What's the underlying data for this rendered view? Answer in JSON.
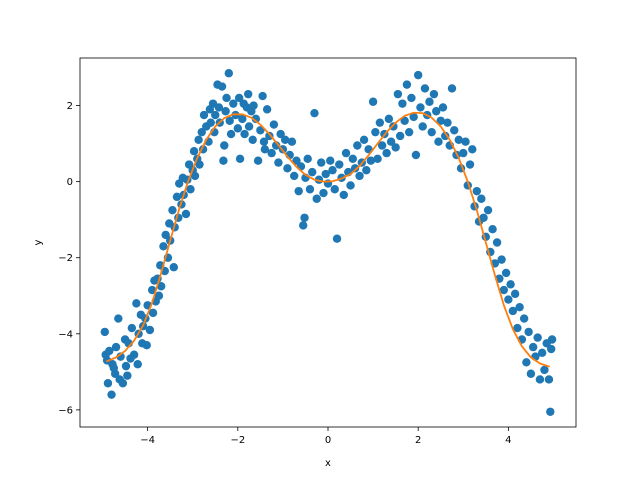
{
  "chart_data": {
    "type": "scatter",
    "xlabel": "x",
    "ylabel": "y",
    "xlim": [
      -5.5,
      5.5
    ],
    "ylim": [
      -6.45,
      3.25
    ],
    "xticks": [
      -4,
      -2,
      0,
      2,
      4
    ],
    "yticks": [
      -6,
      -4,
      -2,
      0,
      2
    ],
    "xtick_labels": [
      "−4",
      "−2",
      "0",
      "2",
      "4"
    ],
    "ytick_labels": [
      "−6",
      "−4",
      "−2",
      "0",
      "2"
    ],
    "grid": false,
    "series": [
      {
        "kind": "scatter",
        "color": "#1f77b4",
        "points": [
          [
            -4.95,
            -3.95
          ],
          [
            -4.93,
            -4.55
          ],
          [
            -4.9,
            -4.7
          ],
          [
            -4.88,
            -5.3
          ],
          [
            -4.85,
            -4.45
          ],
          [
            -4.8,
            -5.6
          ],
          [
            -4.78,
            -4.8
          ],
          [
            -4.75,
            -4.9
          ],
          [
            -4.72,
            -5.05
          ],
          [
            -4.7,
            -4.35
          ],
          [
            -4.65,
            -3.6
          ],
          [
            -4.62,
            -5.2
          ],
          [
            -4.6,
            -4.6
          ],
          [
            -4.55,
            -5.3
          ],
          [
            -4.5,
            -4.15
          ],
          [
            -4.48,
            -4.85
          ],
          [
            -4.45,
            -5.1
          ],
          [
            -4.42,
            -4.25
          ],
          [
            -4.38,
            -4.65
          ],
          [
            -4.35,
            -3.85
          ],
          [
            -4.3,
            -4.55
          ],
          [
            -4.25,
            -3.2
          ],
          [
            -4.22,
            -4.8
          ],
          [
            -4.2,
            -4.0
          ],
          [
            -4.15,
            -3.5
          ],
          [
            -4.12,
            -4.25
          ],
          [
            -4.1,
            -3.8
          ],
          [
            -4.05,
            -3.6
          ],
          [
            -4.02,
            -4.3
          ],
          [
            -4.0,
            -3.25
          ],
          [
            -3.95,
            -3.9
          ],
          [
            -3.9,
            -2.85
          ],
          [
            -3.88,
            -3.45
          ],
          [
            -3.85,
            -2.6
          ],
          [
            -3.82,
            -3.15
          ],
          [
            -3.78,
            -2.55
          ],
          [
            -3.75,
            -3.0
          ],
          [
            -3.72,
            -2.2
          ],
          [
            -3.7,
            -2.75
          ],
          [
            -3.65,
            -1.7
          ],
          [
            -3.62,
            -2.35
          ],
          [
            -3.6,
            -1.4
          ],
          [
            -3.55,
            -2.0
          ],
          [
            -3.52,
            -1.1
          ],
          [
            -3.5,
            -1.55
          ],
          [
            -3.45,
            -0.75
          ],
          [
            -3.42,
            -2.25
          ],
          [
            -3.4,
            -1.2
          ],
          [
            -3.35,
            -0.4
          ],
          [
            -3.32,
            -0.95
          ],
          [
            -3.3,
            -0.05
          ],
          [
            -3.25,
            -0.6
          ],
          [
            -3.22,
            0.1
          ],
          [
            -3.2,
            -0.35
          ],
          [
            -3.15,
            -0.85
          ],
          [
            -3.12,
            0.05
          ],
          [
            -3.08,
            0.45
          ],
          [
            -3.05,
            -0.2
          ],
          [
            -3.0,
            0.3
          ],
          [
            -2.97,
            0.8
          ],
          [
            -2.95,
            0.15
          ],
          [
            -2.9,
            0.6
          ],
          [
            -2.87,
            1.1
          ],
          [
            -2.85,
            0.45
          ],
          [
            -2.8,
            1.3
          ],
          [
            -2.77,
            0.85
          ],
          [
            -2.75,
            1.75
          ],
          [
            -2.7,
            1.45
          ],
          [
            -2.65,
            1.05
          ],
          [
            -2.62,
            1.9
          ],
          [
            -2.6,
            1.55
          ],
          [
            -2.55,
            2.05
          ],
          [
            -2.52,
            1.3
          ],
          [
            -2.5,
            1.75
          ],
          [
            -2.45,
            2.55
          ],
          [
            -2.42,
            1.95
          ],
          [
            -2.4,
            1.55
          ],
          [
            -2.35,
            2.5
          ],
          [
            -2.32,
            0.55
          ],
          [
            -2.3,
            0.95
          ],
          [
            -2.27,
            1.85
          ],
          [
            -2.25,
            2.2
          ],
          [
            -2.2,
            2.85
          ],
          [
            -2.18,
            1.6
          ],
          [
            -2.15,
            1.25
          ],
          [
            -2.1,
            2.05
          ],
          [
            -2.05,
            1.75
          ],
          [
            -2.0,
            1.4
          ],
          [
            -1.97,
            2.2
          ],
          [
            -1.95,
            0.6
          ],
          [
            -1.9,
            1.65
          ],
          [
            -1.87,
            2.05
          ],
          [
            -1.85,
            1.25
          ],
          [
            -1.8,
            1.95
          ],
          [
            -1.77,
            2.3
          ],
          [
            -1.75,
            1.45
          ],
          [
            -1.7,
            1.85
          ],
          [
            -1.67,
            1.1
          ],
          [
            -1.65,
            2.0
          ],
          [
            -1.6,
            1.65
          ],
          [
            -1.55,
            0.55
          ],
          [
            -1.5,
            1.35
          ],
          [
            -1.45,
            2.25
          ],
          [
            -1.42,
            1.05
          ],
          [
            -1.4,
            0.85
          ],
          [
            -1.35,
            1.9
          ],
          [
            -1.3,
            1.2
          ],
          [
            -1.25,
            0.75
          ],
          [
            -1.2,
            1.5
          ],
          [
            -1.15,
            0.95
          ],
          [
            -1.1,
            0.5
          ],
          [
            -1.05,
            1.25
          ],
          [
            -1.0,
            0.85
          ],
          [
            -0.95,
            1.1
          ],
          [
            -0.9,
            0.35
          ],
          [
            -0.85,
            0.7
          ],
          [
            -0.8,
            1.05
          ],
          [
            -0.75,
            0.15
          ],
          [
            -0.7,
            0.55
          ],
          [
            -0.65,
            -0.25
          ],
          [
            -0.6,
            0.4
          ],
          [
            -0.55,
            -1.15
          ],
          [
            -0.52,
            -0.95
          ],
          [
            -0.5,
            0.1
          ],
          [
            -0.45,
            0.6
          ],
          [
            -0.4,
            -0.2
          ],
          [
            -0.35,
            0.25
          ],
          [
            -0.3,
            1.8
          ],
          [
            -0.25,
            -0.45
          ],
          [
            -0.2,
            0.05
          ],
          [
            -0.15,
            0.5
          ],
          [
            -0.1,
            -0.3
          ],
          [
            -0.05,
            0.2
          ],
          [
            0.0,
            -0.05
          ],
          [
            0.05,
            0.55
          ],
          [
            0.1,
            0.3
          ],
          [
            0.15,
            -0.2
          ],
          [
            0.2,
            -1.5
          ],
          [
            0.25,
            0.45
          ],
          [
            0.3,
            0.1
          ],
          [
            0.35,
            -0.35
          ],
          [
            0.4,
            0.75
          ],
          [
            0.45,
            0.25
          ],
          [
            0.5,
            -0.1
          ],
          [
            0.55,
            0.6
          ],
          [
            0.6,
            0.35
          ],
          [
            0.65,
            0.95
          ],
          [
            0.7,
            0.15
          ],
          [
            0.75,
            0.5
          ],
          [
            0.8,
            1.1
          ],
          [
            0.85,
            0.3
          ],
          [
            0.9,
            0.85
          ],
          [
            0.95,
            0.55
          ],
          [
            1.0,
            2.1
          ],
          [
            1.05,
            1.3
          ],
          [
            1.1,
            0.6
          ],
          [
            1.15,
            1.55
          ],
          [
            1.2,
            0.95
          ],
          [
            1.25,
            1.25
          ],
          [
            1.3,
            0.75
          ],
          [
            1.35,
            1.65
          ],
          [
            1.4,
            1.05
          ],
          [
            1.45,
            1.45
          ],
          [
            1.5,
            0.9
          ],
          [
            1.55,
            2.3
          ],
          [
            1.6,
            1.2
          ],
          [
            1.65,
            2.05
          ],
          [
            1.7,
            1.6
          ],
          [
            1.75,
            2.55
          ],
          [
            1.8,
            1.3
          ],
          [
            1.85,
            2.2
          ],
          [
            1.9,
            1.7
          ],
          [
            1.95,
            0.7
          ],
          [
            2.0,
            2.8
          ],
          [
            2.05,
            1.95
          ],
          [
            2.1,
            1.45
          ],
          [
            2.15,
            2.45
          ],
          [
            2.2,
            1.75
          ],
          [
            2.25,
            2.1
          ],
          [
            2.3,
            1.3
          ],
          [
            2.35,
            2.3
          ],
          [
            2.4,
            1.85
          ],
          [
            2.45,
            1.05
          ],
          [
            2.5,
            1.6
          ],
          [
            2.55,
            1.95
          ],
          [
            2.6,
            1.2
          ],
          [
            2.65,
            1.55
          ],
          [
            2.7,
            0.95
          ],
          [
            2.75,
            2.45
          ],
          [
            2.8,
            1.35
          ],
          [
            2.85,
            0.7
          ],
          [
            2.9,
            1.1
          ],
          [
            2.95,
            0.35
          ],
          [
            3.0,
            0.75
          ],
          [
            3.05,
            1.05
          ],
          [
            3.1,
            -0.1
          ],
          [
            3.15,
            0.45
          ],
          [
            3.2,
            0.85
          ],
          [
            3.25,
            -0.65
          ],
          [
            3.3,
            -0.25
          ],
          [
            3.35,
            -1.05
          ],
          [
            3.4,
            -0.45
          ],
          [
            3.45,
            -0.95
          ],
          [
            3.5,
            -1.45
          ],
          [
            3.55,
            -0.75
          ],
          [
            3.6,
            -1.85
          ],
          [
            3.65,
            -1.25
          ],
          [
            3.7,
            -2.15
          ],
          [
            3.75,
            -1.6
          ],
          [
            3.8,
            -2.55
          ],
          [
            3.85,
            -2.05
          ],
          [
            3.9,
            -2.85
          ],
          [
            3.95,
            -2.4
          ],
          [
            4.0,
            -3.1
          ],
          [
            4.05,
            -2.7
          ],
          [
            4.1,
            -3.4
          ],
          [
            4.15,
            -2.95
          ],
          [
            4.2,
            -3.85
          ],
          [
            4.25,
            -3.3
          ],
          [
            4.3,
            -4.15
          ],
          [
            4.35,
            -3.6
          ],
          [
            4.4,
            -4.75
          ],
          [
            4.45,
            -3.95
          ],
          [
            4.5,
            -5.05
          ],
          [
            4.55,
            -4.35
          ],
          [
            4.6,
            -4.6
          ],
          [
            4.65,
            -4.1
          ],
          [
            4.7,
            -5.2
          ],
          [
            4.75,
            -4.5
          ],
          [
            4.8,
            -4.95
          ],
          [
            4.85,
            -4.25
          ],
          [
            4.9,
            -5.2
          ],
          [
            4.93,
            -6.05
          ],
          [
            4.95,
            -4.4
          ],
          [
            4.97,
            -4.15
          ]
        ]
      },
      {
        "kind": "line",
        "color": "#ff7f0e",
        "points": [
          [
            -4.9,
            -4.72
          ],
          [
            -4.7,
            -4.62
          ],
          [
            -4.5,
            -4.45
          ],
          [
            -4.3,
            -4.18
          ],
          [
            -4.1,
            -3.78
          ],
          [
            -3.9,
            -3.18
          ],
          [
            -3.7,
            -2.4
          ],
          [
            -3.5,
            -1.55
          ],
          [
            -3.3,
            -0.72
          ],
          [
            -3.1,
            0.02
          ],
          [
            -2.9,
            0.62
          ],
          [
            -2.7,
            1.1
          ],
          [
            -2.5,
            1.45
          ],
          [
            -2.3,
            1.67
          ],
          [
            -2.1,
            1.77
          ],
          [
            -1.9,
            1.77
          ],
          [
            -1.7,
            1.68
          ],
          [
            -1.5,
            1.5
          ],
          [
            -1.3,
            1.25
          ],
          [
            -1.1,
            0.96
          ],
          [
            -0.9,
            0.66
          ],
          [
            -0.7,
            0.39
          ],
          [
            -0.5,
            0.18
          ],
          [
            -0.3,
            0.05
          ],
          [
            -0.1,
            0.0
          ],
          [
            0.1,
            0.01
          ],
          [
            0.3,
            0.08
          ],
          [
            0.5,
            0.2
          ],
          [
            0.7,
            0.41
          ],
          [
            0.9,
            0.69
          ],
          [
            1.1,
            1.0
          ],
          [
            1.3,
            1.3
          ],
          [
            1.5,
            1.55
          ],
          [
            1.7,
            1.73
          ],
          [
            1.9,
            1.81
          ],
          [
            2.1,
            1.8
          ],
          [
            2.3,
            1.68
          ],
          [
            2.5,
            1.45
          ],
          [
            2.7,
            1.1
          ],
          [
            2.9,
            0.62
          ],
          [
            3.1,
            0.0
          ],
          [
            3.3,
            -0.75
          ],
          [
            3.5,
            -1.6
          ],
          [
            3.7,
            -2.45
          ],
          [
            3.9,
            -3.25
          ],
          [
            4.1,
            -3.88
          ],
          [
            4.3,
            -4.33
          ],
          [
            4.5,
            -4.62
          ],
          [
            4.7,
            -4.78
          ],
          [
            4.9,
            -4.86
          ]
        ]
      }
    ]
  }
}
